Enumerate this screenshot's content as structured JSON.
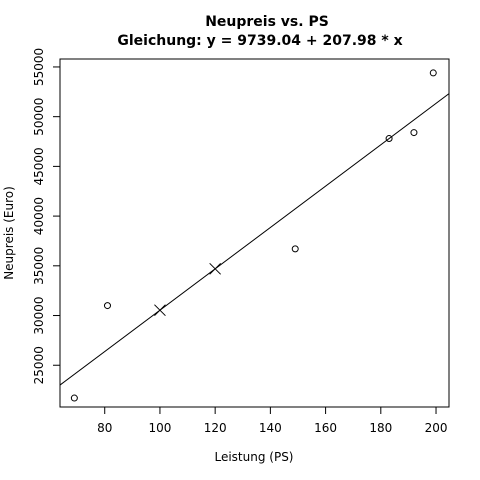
{
  "chart_data": {
    "type": "scatter",
    "title": "Neupreis vs. PS",
    "subtitle": "Gleichung: y = 9739.04 + 207.98 * x",
    "xlabel": "Leistung (PS)",
    "ylabel": "Neupreis (Euro)",
    "xlim": [
      63.8,
      204.7
    ],
    "ylim": [
      20800,
      55800
    ],
    "x_ticks": [
      80,
      100,
      120,
      140,
      160,
      180,
      200
    ],
    "y_ticks": [
      25000,
      30000,
      35000,
      40000,
      45000,
      50000,
      55000
    ],
    "grid": false,
    "points": [
      {
        "x": 69,
        "y": 21700
      },
      {
        "x": 81,
        "y": 31000
      },
      {
        "x": 149,
        "y": 36700
      },
      {
        "x": 183,
        "y": 47800
      },
      {
        "x": 192,
        "y": 48400
      },
      {
        "x": 199,
        "y": 54400
      }
    ],
    "regression": {
      "intercept": 9739.04,
      "slope": 207.98
    },
    "predictions": [
      {
        "x": 100,
        "y": 30537
      },
      {
        "x": 120,
        "y": 34697
      }
    ]
  }
}
